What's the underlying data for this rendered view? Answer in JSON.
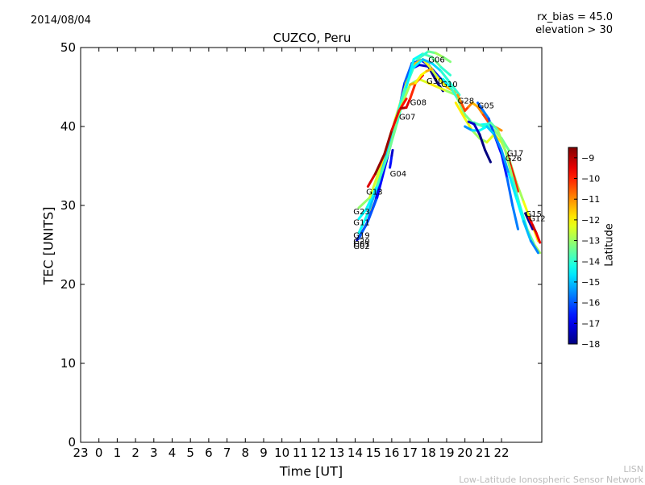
{
  "header": {
    "date": "2014/08/04",
    "rx_bias": "rx_bias = 45.0",
    "elevation": "elevation > 30"
  },
  "footer": {
    "credit_line1": "LISN",
    "credit_line2": "Low-Latitude Ionospheric Sensor Network"
  },
  "chart_data": {
    "type": "line",
    "title": "CUZCO, Peru",
    "xlabel": "Time [UT]",
    "ylabel": "TEC [UNITS]",
    "xlim": [
      -1,
      24.2
    ],
    "ylim": [
      0,
      50
    ],
    "x_ticks": [
      -1,
      0,
      1,
      2,
      3,
      4,
      5,
      6,
      7,
      8,
      9,
      10,
      11,
      12,
      13,
      14,
      15,
      16,
      17,
      18,
      19,
      20,
      21,
      22
    ],
    "x_tick_labels": [
      "23",
      "0",
      "1",
      "2",
      "3",
      "4",
      "5",
      "6",
      "7",
      "8",
      "9",
      "10",
      "11",
      "12",
      "13",
      "14",
      "15",
      "16",
      "17",
      "18",
      "19",
      "20",
      "21",
      "22"
    ],
    "y_ticks": [
      0,
      10,
      20,
      30,
      40,
      50
    ],
    "grid": false,
    "colorbar": {
      "label": "Latitude",
      "min": -18,
      "max": -8.5,
      "ticks": [
        -9,
        -10,
        -11,
        -12,
        -13,
        -14,
        -15,
        -16,
        -17,
        -18
      ]
    },
    "series": [
      {
        "name": "G01",
        "lat": -17.5,
        "x": [
          14.1,
          14.6,
          15.1,
          15.6,
          16.0,
          16.6,
          17.0,
          17.5,
          18.0,
          18.5,
          18.8
        ],
        "y": [
          25.6,
          27.5,
          30.5,
          35.0,
          38.5,
          43.5,
          47.2,
          47.8,
          47.6,
          45.5,
          44.5
        ]
      },
      {
        "name": "G30",
        "lat": -16.5,
        "x": [
          14.2,
          14.7,
          15.2,
          15.7,
          16.2,
          16.7,
          17.1,
          17.6,
          18.0,
          18.5,
          18.9
        ],
        "y": [
          25.8,
          28.0,
          31.0,
          35.5,
          40.0,
          45.5,
          48.0,
          48.4,
          47.8,
          46.5,
          45.5
        ]
      },
      {
        "name": "G20",
        "lat": -12.0,
        "x": [
          14.2,
          14.8,
          15.5,
          16.2,
          16.8,
          17.3,
          17.7,
          18.1,
          18.5,
          19.0,
          19.5
        ],
        "y": [
          26.5,
          29.5,
          35.0,
          41.0,
          45.5,
          48.0,
          48.5,
          47.5,
          46.2,
          45.0,
          44.3
        ]
      },
      {
        "name": "G19",
        "lat": -14.5,
        "x": [
          14.2,
          14.7,
          15.3,
          16.0,
          16.6,
          17.2,
          17.7,
          18.2,
          18.7,
          19.2,
          19.7
        ],
        "y": [
          26.5,
          29.0,
          33.0,
          39.0,
          44.0,
          47.5,
          48.5,
          48.0,
          47.0,
          45.5,
          44.0
        ]
      },
      {
        "name": "G11",
        "lat": -14.0,
        "x": [
          14.2,
          14.6,
          15.2,
          15.8,
          16.3,
          16.8,
          17.2,
          17.7,
          18.2,
          18.7,
          19.2
        ],
        "y": [
          28.3,
          29.5,
          32.5,
          36.5,
          40.5,
          45.0,
          48.5,
          49.2,
          48.8,
          47.5,
          46.5
        ]
      },
      {
        "name": "G23",
        "lat": -12.5,
        "x": [
          14.2,
          14.8,
          15.4,
          16.0,
          16.6,
          17.0,
          17.5,
          18.0,
          18.5,
          19.0,
          19.5
        ],
        "y": [
          29.7,
          31.0,
          35.0,
          39.5,
          43.0,
          45.3,
          46.0,
          45.5,
          45.0,
          44.5,
          44.0
        ]
      },
      {
        "name": "G13",
        "lat": -9.2,
        "x": [
          14.7,
          15.1,
          15.6,
          16.0,
          16.4,
          16.8
        ],
        "y": [
          32.4,
          34.0,
          36.5,
          39.5,
          42.0,
          43.5
        ]
      },
      {
        "name": "G04",
        "lat": -17.2,
        "x": [
          15.9,
          15.95,
          16.0,
          16.05
        ],
        "y": [
          34.8,
          35.5,
          36.3,
          37.0
        ]
      },
      {
        "name": "G07",
        "lat": -9.5,
        "x": [
          16.5,
          16.8,
          17.0,
          17.3,
          17.7
        ],
        "y": [
          42.3,
          42.4,
          43.5,
          45.5,
          46.5
        ]
      },
      {
        "name": "G08",
        "lat": -11.5,
        "x": [
          17.0,
          17.3,
          17.6,
          17.9,
          18.2
        ],
        "y": [
          45.3,
          45.5,
          46.5,
          47.0,
          47.3
        ]
      },
      {
        "name": "G06",
        "lat": -13.5,
        "x": [
          17.4,
          17.7,
          18.0,
          18.4,
          18.8,
          19.2
        ],
        "y": [
          48.5,
          49.0,
          49.5,
          49.3,
          48.8,
          48.2
        ]
      },
      {
        "name": "G10",
        "lat": -13.8,
        "x": [
          18.8,
          19.2,
          19.6,
          20.0,
          20.4,
          20.8,
          21.2,
          21.6,
          22.0,
          22.4
        ],
        "y": [
          46.0,
          45.0,
          43.5,
          41.5,
          40.5,
          40.2,
          40.3,
          39.5,
          38.5,
          37.0
        ]
      },
      {
        "name": "G28",
        "lat": -10.8,
        "x": [
          19.6,
          19.8,
          20.0,
          20.2,
          20.4,
          20.7,
          21.0,
          21.3,
          21.6,
          22.0
        ],
        "y": [
          44.0,
          43.0,
          42.0,
          42.5,
          43.0,
          42.5,
          41.5,
          40.5,
          40.0,
          39.5
        ]
      },
      {
        "name": "G05",
        "lat": -16.2,
        "x": [
          20.7,
          21.0,
          21.3,
          21.6,
          22.0,
          22.3,
          22.6,
          22.9
        ],
        "y": [
          43.0,
          42.0,
          41.0,
          39.0,
          36.5,
          33.5,
          30.0,
          27.0
        ]
      },
      {
        "name": "G17",
        "lat": -12.5,
        "x": [
          19.5,
          20.0,
          20.4,
          20.8,
          21.2,
          21.6,
          22.0,
          22.4,
          22.8,
          23.2,
          23.6,
          24.0
        ],
        "y": [
          43.0,
          41.0,
          39.5,
          38.5,
          38.0,
          39.0,
          38.0,
          36.0,
          33.0,
          30.5,
          28.0,
          25.5
        ]
      },
      {
        "name": "G26",
        "lat": -9.5,
        "x": [
          22.3,
          22.5,
          22.7,
          22.9
        ],
        "y": [
          36.5,
          35.0,
          33.5,
          31.8
        ]
      },
      {
        "name": "G15",
        "lat": -13.5,
        "x": [
          20.5,
          21.0,
          21.4,
          21.8,
          22.2,
          22.6,
          23.0,
          23.4,
          23.8,
          24.1
        ],
        "y": [
          40.5,
          40.0,
          40.5,
          39.5,
          37.0,
          33.5,
          30.0,
          27.0,
          25.0,
          24.0
        ]
      },
      {
        "name": "G12",
        "lat": -17.3,
        "x": [
          23.3,
          23.5,
          23.7
        ],
        "y": [
          29.0,
          28.0,
          27.0
        ]
      },
      {
        "name": "G02",
        "lat": -15.0,
        "x": [
          20.0,
          20.4,
          20.8,
          21.2,
          21.6,
          22.0,
          22.4,
          22.8,
          23.2,
          23.6,
          24.0
        ],
        "y": [
          40.0,
          39.5,
          39.5,
          40.0,
          39.0,
          37.0,
          34.0,
          31.0,
          28.0,
          25.5,
          24.0
        ]
      },
      {
        "name": "",
        "lat": -9.8,
        "x": [
          23.5,
          23.7,
          23.9,
          24.1
        ],
        "y": [
          28.5,
          27.5,
          26.5,
          25.3
        ]
      },
      {
        "name": "",
        "lat": -17.8,
        "x": [
          20.2,
          20.5,
          20.8,
          21.1,
          21.4
        ],
        "y": [
          40.6,
          40.3,
          39.0,
          37.0,
          35.5
        ]
      }
    ],
    "point_labels": [
      {
        "text": "G06",
        "x": 18.0,
        "y": 48.5
      },
      {
        "text": "G30",
        "x": 17.9,
        "y": 45.8
      },
      {
        "text": "G10",
        "x": 18.7,
        "y": 45.4
      },
      {
        "text": "G08",
        "x": 17.0,
        "y": 43.1
      },
      {
        "text": "G28",
        "x": 19.6,
        "y": 43.3
      },
      {
        "text": "G05",
        "x": 20.7,
        "y": 42.7
      },
      {
        "text": "G07",
        "x": 16.4,
        "y": 41.3
      },
      {
        "text": "G17",
        "x": 22.3,
        "y": 36.7
      },
      {
        "text": "G26",
        "x": 22.2,
        "y": 36.0
      },
      {
        "text": "G04",
        "x": 15.9,
        "y": 34.1
      },
      {
        "text": "G13",
        "x": 14.6,
        "y": 31.8
      },
      {
        "text": "G23",
        "x": 13.9,
        "y": 29.3
      },
      {
        "text": "G11",
        "x": 13.9,
        "y": 27.9
      },
      {
        "text": "G19",
        "x": 13.9,
        "y": 26.3
      },
      {
        "text": "G15",
        "x": 23.3,
        "y": 29.0
      },
      {
        "text": "G12",
        "x": 23.5,
        "y": 28.4
      },
      {
        "text": "G20",
        "x": 13.9,
        "y": 25.5
      },
      {
        "text": "G01",
        "x": 13.9,
        "y": 25.2
      },
      {
        "text": "G02",
        "x": 13.9,
        "y": 24.9
      }
    ]
  }
}
